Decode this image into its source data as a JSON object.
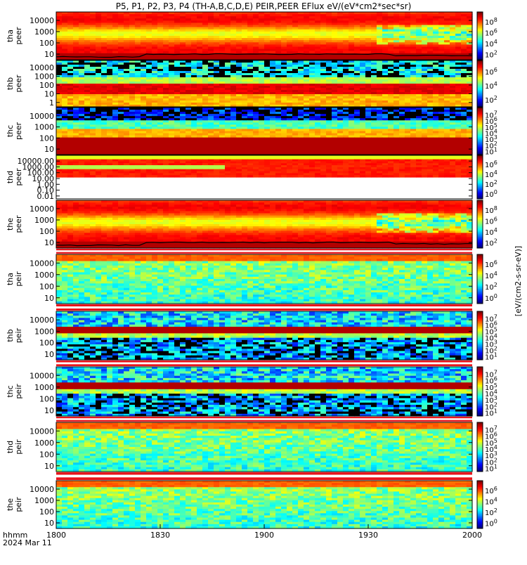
{
  "chart_data": {
    "type": "heatmap",
    "title": "P5, P1, P2, P3, P4 (TH-A,B,C,D,E) PEIR,PEER EFlux eV/(eV*cm2*sec*sr)",
    "xlabel": "",
    "x_ticks": [
      "1800",
      "1830",
      "1900",
      "1930",
      "2000"
    ],
    "corner_label": "hhmm",
    "date_label": "2024 Mar 11",
    "colorbar_label": "[eV/(cm2-s-sr-eV)]",
    "panels": [
      {
        "id": "tha-peer",
        "label": [
          "tha",
          "peer"
        ],
        "scheme": "peer_hot",
        "has_line": true,
        "y_ticks": [
          "10",
          "100",
          "1000",
          "10000"
        ],
        "cb_ticks": [
          "10^2",
          "10^4",
          "10^6",
          "10^8"
        ]
      },
      {
        "id": "thb-peer",
        "label": [
          "thb",
          "peer"
        ],
        "scheme": "peer_noisy",
        "y_ticks": [
          "1",
          "10",
          "100",
          "1000",
          "10000"
        ],
        "cb_ticks": [
          "10^2",
          "10^4",
          "10^6"
        ]
      },
      {
        "id": "thc-peer",
        "label": [
          "thc",
          "peer"
        ],
        "scheme": "peer_noisy_dark",
        "y_ticks": [
          "10",
          "100",
          "1000",
          "10000"
        ],
        "cb_ticks": [
          "10^1",
          "10^2",
          "10^3",
          "10^4",
          "10^5",
          "10^6",
          "10^7"
        ]
      },
      {
        "id": "thd-peer",
        "label": [
          "thd",
          "peer"
        ],
        "scheme": "peer_thd",
        "y_ticks": [
          "0.01",
          "0.10",
          "1.00",
          "10.00",
          "100.00",
          "1000.00",
          "10000.00"
        ],
        "cb_ticks": [
          "10^0",
          "10^2",
          "10^4",
          "10^6"
        ]
      },
      {
        "id": "the-peer",
        "label": [
          "the",
          "peer"
        ],
        "scheme": "peer_hot",
        "has_line": true,
        "y_ticks": [
          "10",
          "100",
          "1000",
          "10000"
        ],
        "cb_ticks": [
          "10^2",
          "10^4",
          "10^6",
          "10^8"
        ]
      },
      {
        "id": "tha-peir",
        "label": [
          "tha",
          "peir"
        ],
        "scheme": "peir_green",
        "y_ticks": [
          "10",
          "100",
          "1000",
          "10000"
        ],
        "cb_ticks": [
          "10^0",
          "10^2",
          "10^4",
          "10^6"
        ]
      },
      {
        "id": "thb-peir",
        "label": [
          "thb",
          "peir"
        ],
        "scheme": "peir_noisy",
        "y_ticks": [
          "10",
          "100",
          "1000",
          "10000"
        ],
        "cb_ticks": [
          "10^1",
          "10^2",
          "10^3",
          "10^4",
          "10^5",
          "10^6",
          "10^7"
        ]
      },
      {
        "id": "thc-peir",
        "label": [
          "thc",
          "peir"
        ],
        "scheme": "peir_noisy",
        "y_ticks": [
          "10",
          "100",
          "1000",
          "10000"
        ],
        "cb_ticks": [
          "10^1",
          "10^2",
          "10^3",
          "10^4",
          "10^5",
          "10^6",
          "10^7"
        ]
      },
      {
        "id": "thd-peir",
        "label": [
          "thd",
          "peir"
        ],
        "scheme": "peir_green",
        "y_ticks": [
          "10",
          "100",
          "1000",
          "10000"
        ],
        "cb_ticks": [
          "10^1",
          "10^2",
          "10^3",
          "10^4",
          "10^5",
          "10^6",
          "10^7"
        ]
      },
      {
        "id": "the-peir",
        "label": [
          "the",
          "peir"
        ],
        "scheme": "peir_green",
        "y_ticks": [
          "10",
          "100",
          "1000",
          "10000"
        ],
        "cb_ticks": [
          "10^0",
          "10^2",
          "10^4",
          "10^6"
        ]
      }
    ]
  }
}
